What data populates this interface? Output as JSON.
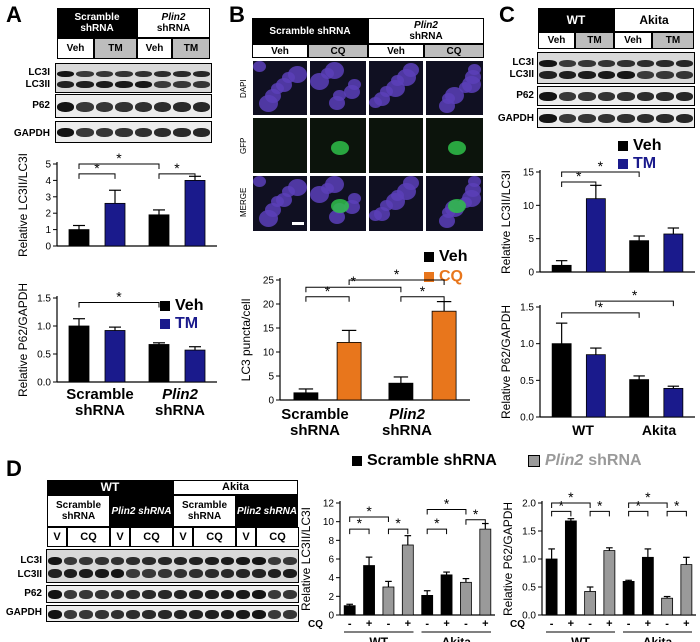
{
  "panels": {
    "A": "A",
    "B": "B",
    "C": "C",
    "D": "D"
  },
  "A": {
    "header_scramble": "Scramble shRNA",
    "header_plin2": "Plin2",
    "header_plin2_sub": "shRNA",
    "lanes": [
      "Veh",
      "TM",
      "Veh",
      "TM"
    ],
    "blot_labels": {
      "lc3i": "LC3I",
      "lc3ii": "LC3II",
      "p62": "P62",
      "gapdh": "GAPDH"
    },
    "legend": {
      "veh": "Veh",
      "tm": "TM"
    },
    "xlabels": {
      "scramble_1": "Scramble",
      "scramble_2": "shRNA",
      "plin2_1": "Plin2",
      "plin2_2": "shRNA"
    }
  },
  "B": {
    "header_scramble": "Scramble shRNA",
    "header_plin2": "Plin2",
    "header_plin2_sub": "shRNA",
    "lanes": [
      "Veh",
      "CQ",
      "Veh",
      "CQ"
    ],
    "row_labels": {
      "dapi": "DAPI",
      "gfp": "GFP",
      "merge": "MERGE"
    },
    "legend": {
      "veh": "Veh",
      "cq": "CQ"
    },
    "xlabels": {
      "scramble_1": "Scramble",
      "scramble_2": "shRNA",
      "plin2_1": "Plin2",
      "plin2_2": "shRNA"
    }
  },
  "C": {
    "header_wt": "WT",
    "header_akita": "Akita",
    "lanes": [
      "Veh",
      "TM",
      "Veh",
      "TM"
    ],
    "blot_labels": {
      "lc3i": "LC3I",
      "lc3ii": "LC3II",
      "p62": "P62",
      "gapdh": "GAPDH"
    },
    "legend": {
      "veh": "Veh",
      "tm": "TM"
    },
    "xlabels": {
      "wt": "WT",
      "akita": "Akita"
    }
  },
  "D": {
    "header_wt": "WT",
    "header_akita": "Akita",
    "sub_headers": [
      "Scramble shRNA",
      "Plin2 shRNA",
      "Scramble shRNA",
      "Plin2 shRNA"
    ],
    "lanes": [
      "V",
      "CQ",
      "V",
      "CQ",
      "V",
      "CQ",
      "V",
      "CQ"
    ],
    "blot_labels": {
      "lc3i": "LC3I",
      "lc3ii": "LC3II",
      "p62": "P62",
      "gapdh": "GAPDH"
    },
    "legend": {
      "scramble": "Scramble shRNA",
      "plin2": "Plin2",
      "plin2_sub": "shRNA"
    },
    "cq_label": "CQ",
    "signs": [
      "-",
      "+",
      "-",
      "+",
      "-",
      "+",
      "-",
      "+"
    ],
    "xlabels": {
      "wt": "WT",
      "akita": "Akita"
    }
  },
  "colors": {
    "veh": "#000000",
    "tm": "#1a1a8c",
    "cq": "#e8761c",
    "scramble": "#000000",
    "plin2": "#9a9a9a"
  },
  "chart_data": [
    {
      "id": "A1",
      "type": "bar",
      "categories": [
        "Scramble Veh",
        "Scramble TM",
        "Plin2 Veh",
        "Plin2 TM"
      ],
      "values": [
        1.0,
        2.6,
        1.9,
        4.0
      ],
      "errors": [
        0.25,
        0.8,
        0.3,
        0.25
      ],
      "ylabel": "Relative LC3II/LC3I",
      "ylim": [
        0,
        5
      ],
      "ticks": [
        "0",
        "1",
        "2",
        "3",
        "4",
        "5"
      ],
      "significance": [
        "*",
        "*",
        "*"
      ]
    },
    {
      "id": "A2",
      "type": "bar",
      "categories": [
        "Scramble Veh",
        "Scramble TM",
        "Plin2 Veh",
        "Plin2 TM"
      ],
      "values": [
        1.0,
        0.92,
        0.67,
        0.57
      ],
      "errors": [
        0.13,
        0.06,
        0.03,
        0.06
      ],
      "ylabel": "Relative P62/GAPDH",
      "ylim": [
        0,
        1.5
      ],
      "ticks": [
        "0.0",
        "0.5",
        "1.0",
        "1.5"
      ],
      "significance": [
        "*"
      ]
    },
    {
      "id": "B1",
      "type": "bar",
      "categories": [
        "Scramble Veh",
        "Scramble CQ",
        "Plin2 Veh",
        "Plin2 CQ"
      ],
      "values": [
        1.5,
        12.0,
        3.5,
        18.5
      ],
      "errors": [
        0.8,
        2.5,
        1.3,
        2.0
      ],
      "ylabel": "LC3 puncta/cell",
      "ylim": [
        0,
        25
      ],
      "ticks": [
        "0",
        "5",
        "10",
        "15",
        "20",
        "25"
      ],
      "significance": [
        "*",
        "*",
        "*",
        "*"
      ]
    },
    {
      "id": "C1",
      "type": "bar",
      "categories": [
        "WT Veh",
        "WT TM",
        "Akita Veh",
        "Akita TM"
      ],
      "values": [
        1.0,
        11.0,
        4.7,
        5.7
      ],
      "errors": [
        0.7,
        2.0,
        0.7,
        0.9
      ],
      "ylabel": "Relative LC3II/LC3I",
      "ylim": [
        0,
        15
      ],
      "ticks": [
        "0",
        "5",
        "10",
        "15"
      ],
      "significance": [
        "*",
        "*"
      ]
    },
    {
      "id": "C2",
      "type": "bar",
      "categories": [
        "WT Veh",
        "WT TM",
        "Akita Veh",
        "Akita TM"
      ],
      "values": [
        1.0,
        0.85,
        0.51,
        0.39
      ],
      "errors": [
        0.28,
        0.09,
        0.05,
        0.03
      ],
      "ylabel": "Relative P62/GAPDH",
      "ylim": [
        0,
        1.5
      ],
      "ticks": [
        "0.0",
        "0.5",
        "1.0",
        "1.5"
      ],
      "significance": [
        "*",
        "*"
      ]
    },
    {
      "id": "D1",
      "type": "bar",
      "categories": [
        "WT Scr -",
        "WT Scr +",
        "WT Plin2 -",
        "WT Plin2 +",
        "Akita Scr -",
        "Akita Scr +",
        "Akita Plin2 -",
        "Akita Plin2 +"
      ],
      "values": [
        1.0,
        5.3,
        3.0,
        7.5,
        2.1,
        4.3,
        3.5,
        9.2
      ],
      "errors": [
        0.15,
        0.9,
        0.6,
        1.0,
        0.5,
        0.3,
        0.4,
        0.6
      ],
      "ylabel": "Relative LC3II/LC3I",
      "ylim": [
        0,
        12
      ],
      "ticks": [
        "0",
        "2",
        "4",
        "6",
        "8",
        "10",
        "12"
      ],
      "significance": [
        "*",
        "*",
        "*",
        "*",
        "*",
        "*"
      ]
    },
    {
      "id": "D2",
      "type": "bar",
      "categories": [
        "WT Scr -",
        "WT Scr +",
        "WT Plin2 -",
        "WT Plin2 +",
        "Akita Scr -",
        "Akita Scr +",
        "Akita Plin2 -",
        "Akita Plin2 +"
      ],
      "values": [
        1.0,
        1.68,
        0.42,
        1.15,
        0.6,
        1.03,
        0.3,
        0.9
      ],
      "errors": [
        0.18,
        0.04,
        0.08,
        0.05,
        0.02,
        0.15,
        0.03,
        0.13
      ],
      "ylabel": "Relative P62/GAPDH",
      "ylim": [
        0,
        2.0
      ],
      "ticks": [
        "0.0",
        "0.5",
        "1.0",
        "1.5",
        "2.0"
      ],
      "significance": [
        "*",
        "*",
        "*",
        "*",
        "*",
        "*"
      ]
    }
  ]
}
